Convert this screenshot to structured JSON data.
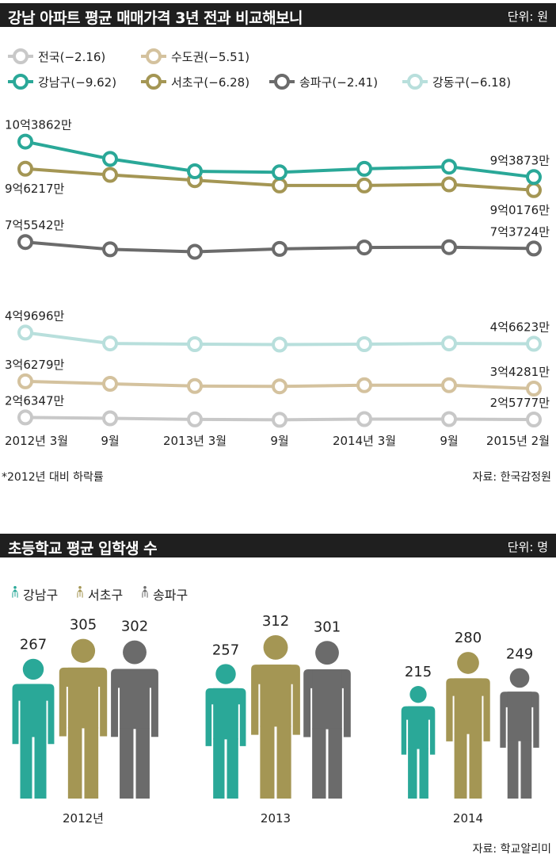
{
  "chart1": {
    "title": "강남 아파트 평균 매매가격 3년 전과 비교해보니",
    "unit": "단위: 원",
    "footnote": "*2012년 대비 하락률",
    "source": "자료: 한국감정원",
    "colors": {
      "전국": "#c8c8c8",
      "수도권": "#d4c29e",
      "강남구": "#2aa898",
      "서초구": "#a49654",
      "송파구": "#6b6b6b",
      "강동구": "#b8dfdc"
    },
    "chart_data": {
      "type": "line",
      "title": "강남 아파트 평균 매매가격 3년 전과 비교해보니",
      "x": [
        "2012년 3월",
        "9월",
        "2013년 3월",
        "9월",
        "2014년 3월",
        "9월",
        "2015년 2월"
      ],
      "unit": "원",
      "series": [
        {
          "name": "강남구",
          "legend": "강남구(−9.62)",
          "change": -9.62,
          "values": [
            1038620000,
            990000000,
            955000000,
            952000000,
            962000000,
            968000000,
            938730000
          ],
          "start_label": "10억3862만",
          "end_label": "9억3873만"
        },
        {
          "name": "서초구",
          "legend": "서초구(−6.28)",
          "change": -6.28,
          "values": [
            962170000,
            945000000,
            930000000,
            915000000,
            915000000,
            918000000,
            901760000
          ],
          "start_label": "9억6217만",
          "end_label": "9억0176만"
        },
        {
          "name": "송파구",
          "legend": "송파구(−2.41)",
          "change": -2.41,
          "values": [
            755420000,
            735000000,
            728000000,
            736000000,
            740000000,
            741000000,
            737240000
          ],
          "start_label": "7억5542만",
          "end_label": "7억3724만"
        },
        {
          "name": "강동구",
          "legend": "강동구(−6.18)",
          "change": -6.18,
          "values": [
            496960000,
            467000000,
            465000000,
            464000000,
            465000000,
            467000000,
            466230000
          ],
          "start_label": "4억9696만",
          "end_label": "4억6623만"
        },
        {
          "name": "수도권",
          "legend": "수도권(−5.51)",
          "change": -5.51,
          "values": [
            362790000,
            356000000,
            350000000,
            349000000,
            352000000,
            352000000,
            342810000
          ],
          "start_label": "3억6279만",
          "end_label": "3억4281만"
        },
        {
          "name": "전국",
          "legend": "전국(−2.16)",
          "change": -2.16,
          "values": [
            263470000,
            261000000,
            258000000,
            257000000,
            259000000,
            259000000,
            257770000
          ],
          "start_label": "2억6347만",
          "end_label": "2억5777만"
        }
      ]
    }
  },
  "chart2": {
    "title": "초등학교 평균 입학생 수",
    "unit": "단위: 명",
    "source": "자료: 학교알리미",
    "colors": {
      "강남구": "#2aa898",
      "서초구": "#a49654",
      "송파구": "#6b6b6b"
    },
    "legend": [
      "강남구",
      "서초구",
      "송파구"
    ],
    "chart_data": {
      "type": "bar",
      "title": "초등학교 평균 입학생 수",
      "categories": [
        "2012년",
        "2013",
        "2014"
      ],
      "unit": "명",
      "series": [
        {
          "name": "강남구",
          "values": [
            267,
            257,
            215
          ]
        },
        {
          "name": "서초구",
          "values": [
            305,
            312,
            280
          ]
        },
        {
          "name": "송파구",
          "values": [
            302,
            301,
            249
          ]
        }
      ]
    }
  }
}
